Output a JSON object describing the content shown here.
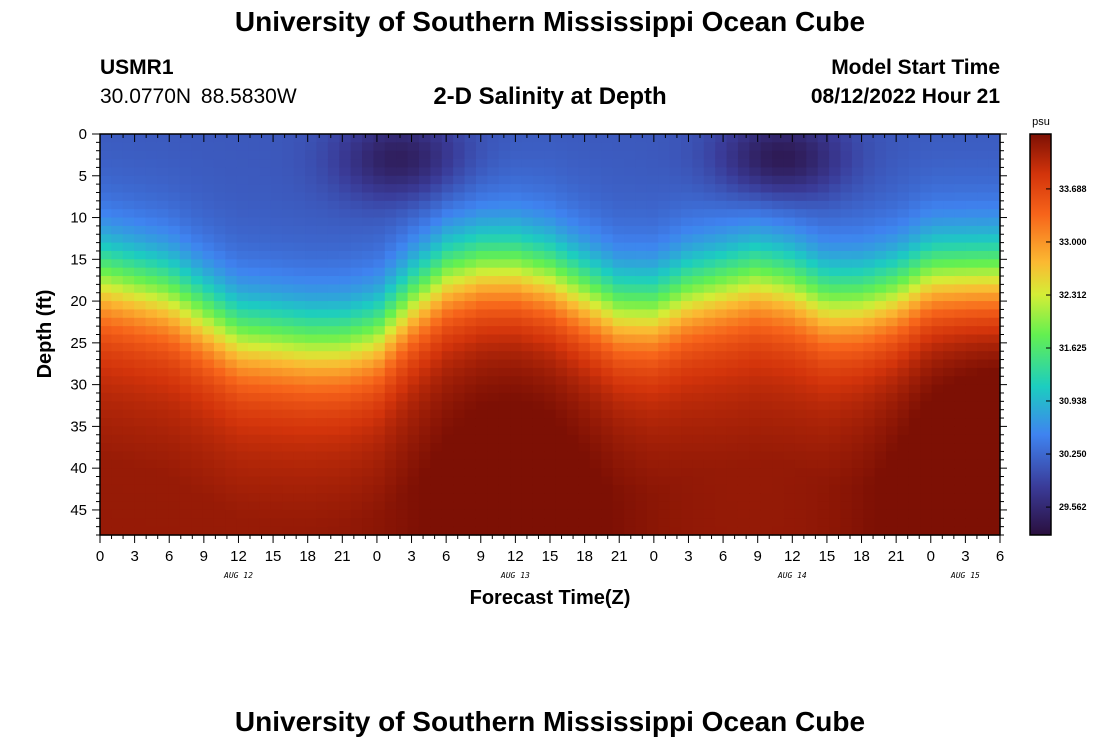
{
  "page": {
    "title_top": "University of Southern Mississippi Ocean Cube",
    "title_bottom": "University of Southern Mississippi Ocean Cube",
    "station_id": "USMR1",
    "station_coords": "30.0770N  88.5830W",
    "subtitle": "2-D Salinity at Depth",
    "model_start_label": "Model Start Time",
    "model_start_value": "08/12/2022 Hour 21"
  },
  "chart_data": {
    "type": "heatmap",
    "title": "2-D Salinity at Depth",
    "xlabel": "Forecast Time(Z)",
    "ylabel": "Depth (ft)",
    "xlim": [
      0,
      78
    ],
    "ylim": [
      0,
      48
    ],
    "x_ticks": [
      0,
      3,
      6,
      9,
      12,
      15,
      18,
      21,
      24,
      27,
      30,
      33,
      36,
      39,
      42,
      45,
      48,
      51,
      54,
      57,
      60,
      63,
      66,
      69,
      72,
      75,
      78
    ],
    "x_tick_labels": [
      "0",
      "3",
      "6",
      "9",
      "12",
      "15",
      "18",
      "21",
      "0",
      "3",
      "6",
      "9",
      "12",
      "15",
      "18",
      "21",
      "0",
      "3",
      "6",
      "9",
      "12",
      "15",
      "18",
      "21",
      "0",
      "3",
      "6"
    ],
    "y_ticks": [
      0,
      5,
      10,
      15,
      20,
      25,
      30,
      35,
      40,
      45
    ],
    "y_tick_labels": [
      "0",
      "5",
      "10",
      "15",
      "20",
      "25",
      "30",
      "35",
      "40",
      "45"
    ],
    "day_labels": [
      {
        "label": "AUG 12",
        "x": 12
      },
      {
        "label": "AUG 13",
        "x": 36
      },
      {
        "label": "AUG 14",
        "x": 60
      },
      {
        "label": "AUG 15",
        "x": 75
      }
    ],
    "colorbar": {
      "units": "psu",
      "min": 29.2,
      "max": 34.4,
      "ticks": [
        29.562,
        30.25,
        30.938,
        31.625,
        32.312,
        33.0,
        33.688
      ],
      "tick_labels": [
        "29.562",
        "30.250",
        "30.938",
        "31.625",
        "32.312",
        "33.000",
        "33.688"
      ]
    },
    "cline": {
      "description": "approximate depth (ft) of the fresh-to-salty transition over forecast hour",
      "x": [
        0,
        6,
        12,
        18,
        21,
        24,
        27,
        30,
        33,
        36,
        39,
        42,
        45,
        48,
        51,
        54,
        57,
        60,
        63,
        66,
        69,
        72,
        75,
        78
      ],
      "depth": [
        17,
        19,
        24,
        25,
        25,
        24,
        20,
        17,
        16,
        16,
        17,
        19,
        21,
        21,
        19,
        18,
        17,
        18,
        20,
        20,
        19,
        17,
        17,
        17
      ]
    },
    "surface_minima": [
      {
        "x": 26,
        "depth": 3,
        "value": 29.4
      },
      {
        "x": 59,
        "depth": 3,
        "value": 29.3
      }
    ],
    "bottom_value": 33.9,
    "bottom_max": [
      {
        "x": 36,
        "value": 34.2
      },
      {
        "x": 78,
        "value": 34.4
      }
    ]
  }
}
